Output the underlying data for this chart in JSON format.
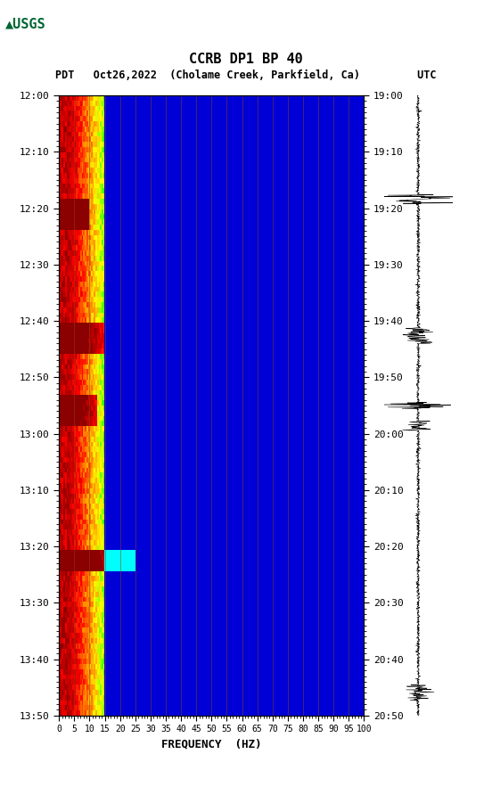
{
  "title_line1": "CCRB DP1 BP 40",
  "title_line2": "PDT   Oct26,2022  (Cholame Creek, Parkfield, Ca)         UTC",
  "xlabel": "FREQUENCY  (HZ)",
  "freq_min": 0,
  "freq_max": 100,
  "freq_ticks": [
    0,
    5,
    10,
    15,
    20,
    25,
    30,
    35,
    40,
    45,
    50,
    55,
    60,
    65,
    70,
    75,
    80,
    85,
    90,
    95,
    100
  ],
  "time_left_labels": [
    "12:00",
    "12:10",
    "12:20",
    "12:30",
    "12:40",
    "12:50",
    "13:00",
    "13:10",
    "13:20",
    "13:30",
    "13:40",
    "13:50"
  ],
  "time_right_labels": [
    "19:00",
    "19:10",
    "19:20",
    "19:30",
    "19:40",
    "19:50",
    "20:00",
    "20:10",
    "20:20",
    "20:30",
    "20:40",
    "20:50"
  ],
  "n_time_steps": 120,
  "n_freq_bins": 200,
  "background_color": "#ffffff",
  "spectrogram_background": "#0000aa",
  "vertical_line_color": "#8B4513",
  "vertical_line_freq": [
    5,
    10,
    15,
    20,
    25,
    30,
    35,
    40,
    45,
    50,
    55,
    60,
    65,
    70,
    75,
    80,
    85,
    90,
    95
  ],
  "usgs_logo_color": "#006633",
  "waveform_color": "#000000",
  "fig_width": 5.52,
  "fig_height": 8.92,
  "dpi": 100
}
